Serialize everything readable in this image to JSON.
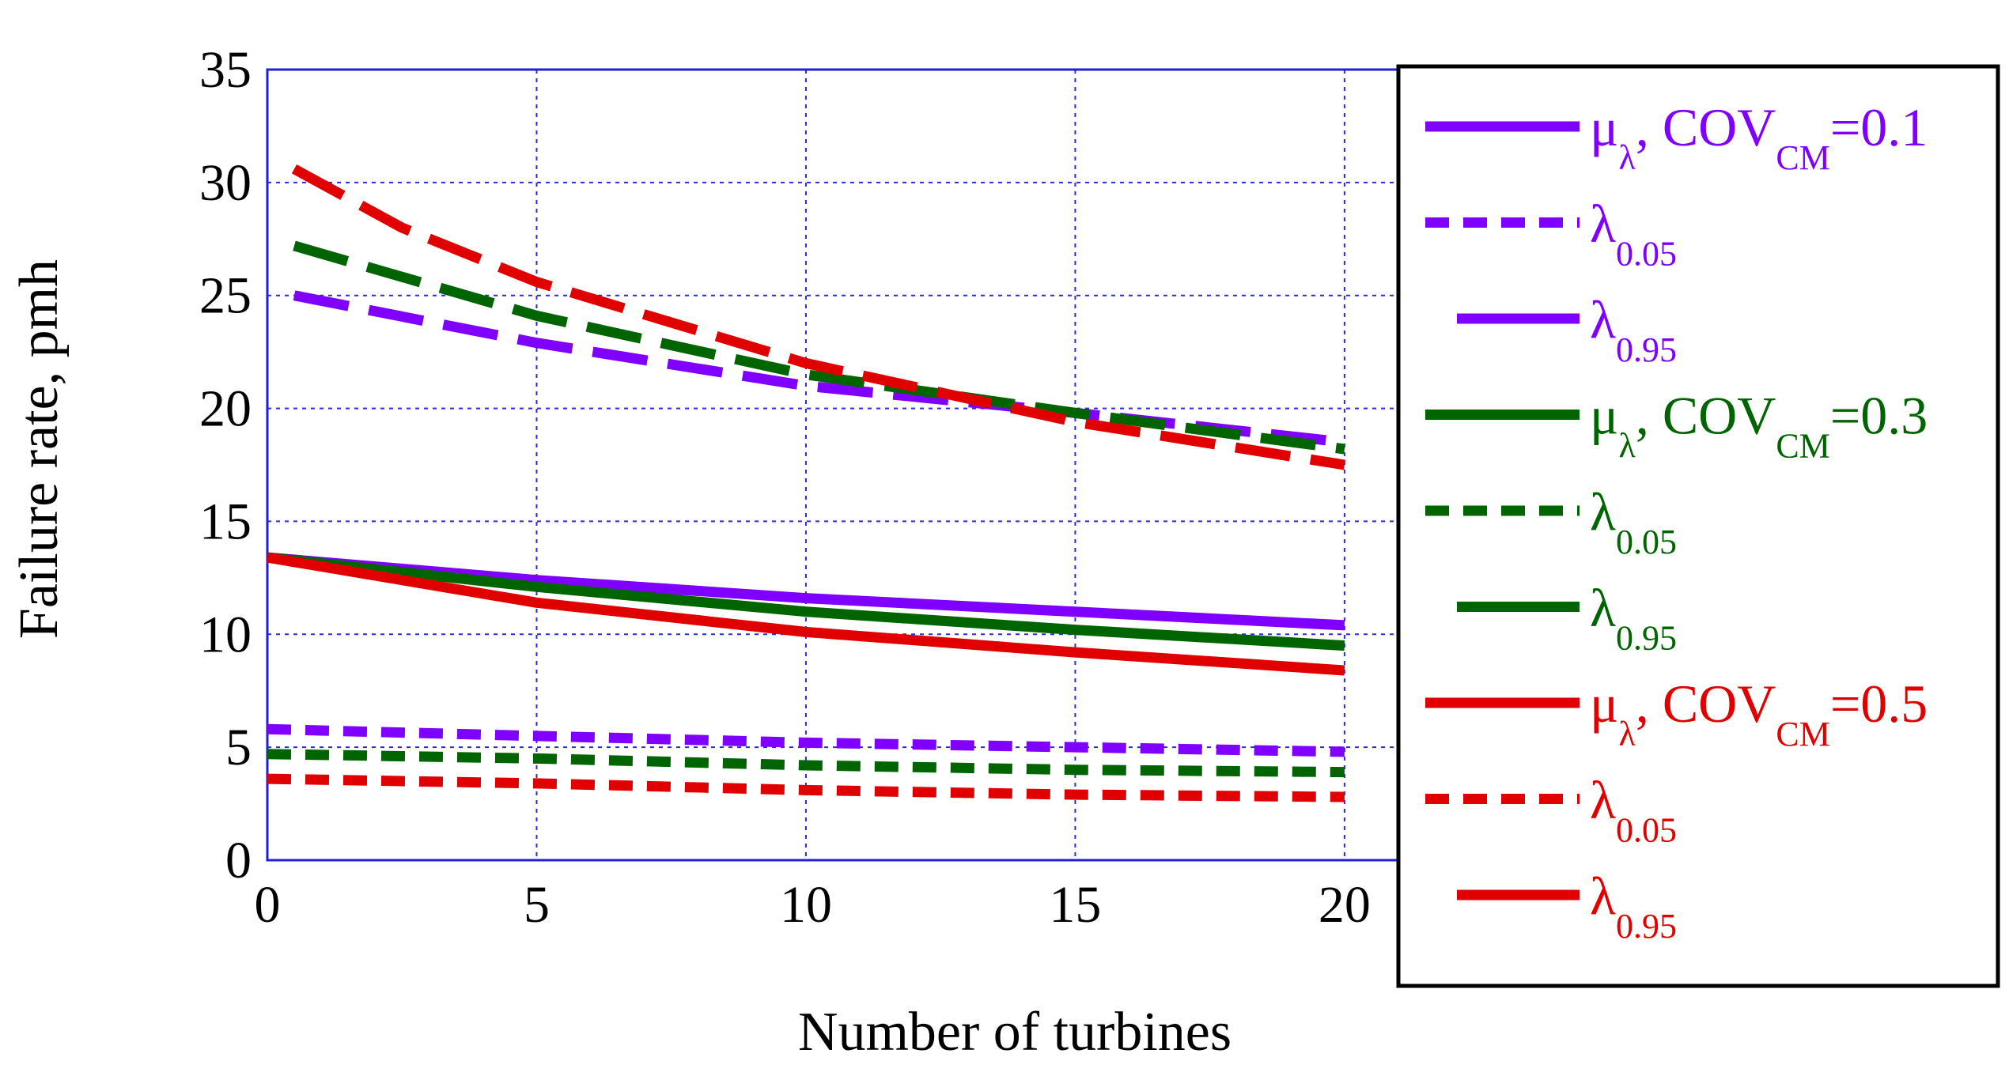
{
  "chart_data": {
    "type": "line",
    "xlabel": "Number of turbines",
    "ylabel": "Failure rate, pmh",
    "xlim": [
      0,
      21
    ],
    "ylim": [
      0,
      35
    ],
    "xticks": [
      0,
      5,
      10,
      15,
      20
    ],
    "yticks": [
      0,
      5,
      10,
      15,
      20,
      25,
      30,
      35
    ],
    "xtick_labels": [
      "0",
      "5",
      "10",
      "15",
      "20"
    ],
    "ytick_labels": [
      "0",
      "5",
      "10",
      "15",
      "20",
      "25",
      "30",
      "35"
    ],
    "grid": true,
    "legend_position": "right",
    "x": [
      0,
      5,
      10,
      15,
      20
    ],
    "series": [
      {
        "name": "mu_lambda, COV_CM=0.1",
        "label_main": "μ",
        "label_sub": "λ",
        "label_mid": ", COV",
        "label_sub2": "CM",
        "label_end": "=0.1",
        "color": "#7f00ff",
        "style": "solid",
        "x": [
          0,
          5,
          10,
          15,
          20
        ],
        "values": [
          13.4,
          12.4,
          11.6,
          11.0,
          10.4
        ]
      },
      {
        "name": "lambda_0.05, COV_CM=0.1",
        "label_main": "λ",
        "label_sub": "0.05",
        "color": "#7f00ff",
        "style": "dashed",
        "x": [
          0,
          5,
          10,
          15,
          20
        ],
        "values": [
          5.8,
          5.5,
          5.2,
          5.0,
          4.8
        ]
      },
      {
        "name": "lambda_0.95, COV_CM=0.1",
        "label_main": "λ",
        "label_sub": "0.95",
        "color": "#7f00ff",
        "style": "longdash",
        "x": [
          0.5,
          5,
          10,
          15,
          20
        ],
        "values": [
          25.0,
          22.9,
          21.0,
          19.8,
          18.5
        ]
      },
      {
        "name": "mu_lambda, COV_CM=0.3",
        "label_main": "μ",
        "label_sub": "λ",
        "label_mid": ", COV",
        "label_sub2": "CM",
        "label_end": "=0.3",
        "color": "#006400",
        "style": "solid",
        "x": [
          0,
          5,
          10,
          15,
          20
        ],
        "values": [
          13.4,
          12.1,
          11.0,
          10.2,
          9.5
        ]
      },
      {
        "name": "lambda_0.05, COV_CM=0.3",
        "label_main": "λ",
        "label_sub": "0.05",
        "color": "#006400",
        "style": "dashed",
        "x": [
          0,
          5,
          10,
          15,
          20
        ],
        "values": [
          4.7,
          4.5,
          4.2,
          4.0,
          3.9
        ]
      },
      {
        "name": "lambda_0.95, COV_CM=0.3",
        "label_main": "λ",
        "label_sub": "0.95",
        "color": "#006400",
        "style": "longdash",
        "x": [
          0.5,
          5,
          10,
          15,
          20
        ],
        "values": [
          27.2,
          24.1,
          21.5,
          19.8,
          18.2
        ]
      },
      {
        "name": "mu_lambda, COV_CM=0.5",
        "label_main": "μ",
        "label_sub": "λ",
        "label_mid": ", COV",
        "label_sub2": "CM",
        "label_end": "=0.5",
        "color": "#e00000",
        "style": "solid",
        "x": [
          0,
          5,
          10,
          15,
          20
        ],
        "values": [
          13.4,
          11.4,
          10.1,
          9.2,
          8.4
        ]
      },
      {
        "name": "lambda_0.05, COV_CM=0.5",
        "label_main": "λ",
        "label_sub": "0.05",
        "color": "#e00000",
        "style": "dashed",
        "x": [
          0,
          5,
          10,
          15,
          20
        ],
        "values": [
          3.6,
          3.4,
          3.1,
          2.9,
          2.8
        ]
      },
      {
        "name": "lambda_0.95, COV_CM=0.5",
        "label_main": "λ",
        "label_sub": "0.95",
        "color": "#e00000",
        "style": "longdash",
        "x": [
          0.5,
          2.5,
          5,
          10,
          15,
          20
        ],
        "values": [
          30.6,
          28.0,
          25.6,
          22.0,
          19.4,
          17.5
        ]
      }
    ]
  }
}
